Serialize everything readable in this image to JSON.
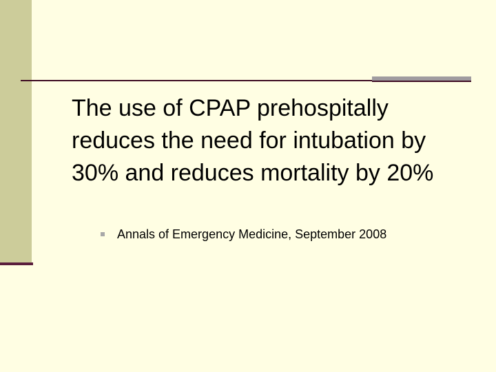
{
  "slide": {
    "body_text": "The use of CPAP prehospitally reduces the need for intubation by 30% and reduces mortality by 20%",
    "bullets": [
      {
        "icon": "square-bullet-icon",
        "text": "Annals of Emergency Medicine, September 2008"
      }
    ]
  },
  "colors": {
    "background": "#fffee3",
    "sidebar": "#cccc9a",
    "accent_line": "#3d0a22",
    "accent_block": "#a09ca0"
  }
}
